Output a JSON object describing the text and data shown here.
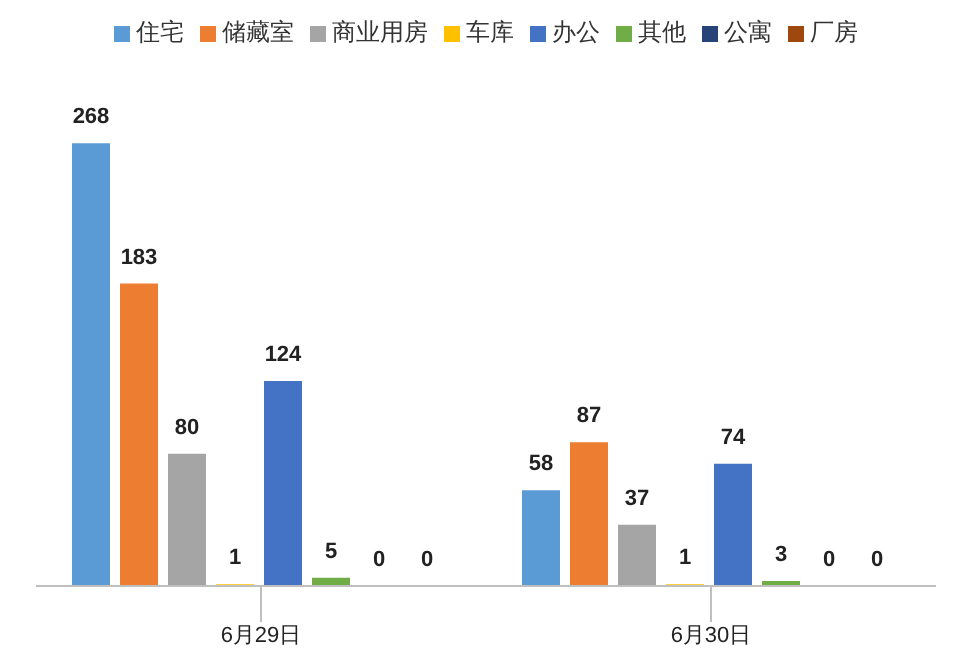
{
  "chart_data": {
    "type": "bar",
    "categories": [
      "6月29日",
      "6月30日"
    ],
    "series": [
      {
        "name": "住宅",
        "color": "#5b9bd5",
        "values": [
          268,
          58
        ]
      },
      {
        "name": "储藏室",
        "color": "#ed7d31",
        "values": [
          183,
          87
        ]
      },
      {
        "name": "商业用房",
        "color": "#a5a5a5",
        "values": [
          80,
          37
        ]
      },
      {
        "name": "车库",
        "color": "#ffc000",
        "values": [
          1,
          1
        ]
      },
      {
        "name": "办公",
        "color": "#4472c4",
        "values": [
          124,
          74
        ]
      },
      {
        "name": "其他",
        "color": "#70ad47",
        "values": [
          5,
          3
        ]
      },
      {
        "name": "公寓",
        "color": "#264478",
        "values": [
          0,
          0
        ]
      },
      {
        "name": "厂房",
        "color": "#9e480e",
        "values": [
          0,
          0
        ]
      }
    ],
    "data_labels": true,
    "legend": "top",
    "grid": false
  }
}
